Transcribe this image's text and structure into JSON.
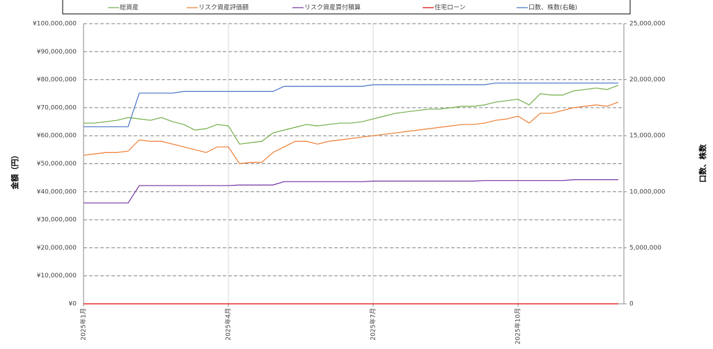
{
  "chart_data": {
    "type": "line",
    "legend_position": "top",
    "ylabel": "金額（円）",
    "y2label": "口数、株数",
    "categories": [
      "2025年1月",
      null,
      null,
      null,
      null,
      null,
      null,
      null,
      null,
      null,
      null,
      null,
      null,
      "2025年4月",
      null,
      null,
      null,
      null,
      null,
      null,
      null,
      null,
      null,
      null,
      null,
      null,
      "2025年7月",
      null,
      null,
      null,
      null,
      null,
      null,
      null,
      null,
      null,
      null,
      null,
      null,
      "2025年10月",
      null,
      null,
      null,
      null,
      null,
      null,
      null,
      null,
      null
    ],
    "ylim": [
      0,
      100000000
    ],
    "yticks": [
      {
        "value": 0,
        "label": "¥0"
      },
      {
        "value": 10000000,
        "label": "¥10,000,000"
      },
      {
        "value": 20000000,
        "label": "¥20,000,000"
      },
      {
        "value": 30000000,
        "label": "¥30,000,000"
      },
      {
        "value": 40000000,
        "label": "¥40,000,000"
      },
      {
        "value": 50000000,
        "label": "¥50,000,000"
      },
      {
        "value": 60000000,
        "label": "¥60,000,000"
      },
      {
        "value": 70000000,
        "label": "¥70,000,000"
      },
      {
        "value": 80000000,
        "label": "¥80,000,000"
      },
      {
        "value": 90000000,
        "label": "¥90,000,000"
      },
      {
        "value": 100000000,
        "label": "¥100,000,000"
      }
    ],
    "y2lim": [
      0,
      25000000
    ],
    "y2ticks": [
      0,
      {
        "value": 5000000,
        "label": "5,000,000"
      },
      {
        "value": 10000000,
        "label": "10,000,000"
      },
      {
        "value": 15000000,
        "label": "15,000,000"
      },
      {
        "value": 20000000,
        "label": "20,000,000"
      },
      {
        "value": 25000000,
        "label": "25,000,000"
      }
    ],
    "grid": true,
    "series": [
      {
        "name": "総資産",
        "color": "#70ad47",
        "values": [
          64500000,
          64500000,
          65000000,
          65500000,
          66500000,
          66000000,
          65500000,
          66500000,
          65000000,
          64000000,
          62000000,
          62500000,
          64000000,
          63500000,
          57000000,
          57500000,
          58000000,
          61000000,
          62000000,
          63000000,
          64000000,
          63500000,
          64000000,
          64500000,
          64500000,
          65000000,
          66000000,
          67000000,
          68000000,
          68500000,
          69000000,
          69500000,
          69500000,
          70000000,
          70500000,
          70500000,
          71000000,
          72000000,
          72500000,
          73000000,
          71000000,
          75000000,
          74500000,
          74500000,
          76000000,
          76500000,
          77000000,
          76500000,
          78000000
        ]
      },
      {
        "name": "リスク資産評価額",
        "color": "#ed7d31",
        "values": [
          53000000,
          53500000,
          54000000,
          54000000,
          54500000,
          58500000,
          58000000,
          58000000,
          57000000,
          56000000,
          55000000,
          54000000,
          56000000,
          56000000,
          50000000,
          50500000,
          50500000,
          54000000,
          56000000,
          58000000,
          58000000,
          57000000,
          58000000,
          58500000,
          59000000,
          59500000,
          60000000,
          60500000,
          61000000,
          61500000,
          62000000,
          62500000,
          63000000,
          63500000,
          64000000,
          64000000,
          64500000,
          65500000,
          66000000,
          67000000,
          64500000,
          68000000,
          68000000,
          69000000,
          70000000,
          70500000,
          71000000,
          70500000,
          72000000
        ]
      },
      {
        "name": "リスク資産買付積算",
        "color": "#7030a0",
        "values": [
          36000000,
          36000000,
          36000000,
          36000000,
          36000000,
          42200000,
          42200000,
          42200000,
          42200000,
          42200000,
          42200000,
          42200000,
          42200000,
          42200000,
          42400000,
          42400000,
          42400000,
          42400000,
          43600000,
          43600000,
          43600000,
          43600000,
          43600000,
          43600000,
          43600000,
          43600000,
          43800000,
          43800000,
          43800000,
          43800000,
          43800000,
          43800000,
          43800000,
          43800000,
          43800000,
          43800000,
          44000000,
          44000000,
          44000000,
          44000000,
          44000000,
          44000000,
          44000000,
          44000000,
          44300000,
          44300000,
          44300000,
          44300000,
          44300000
        ]
      },
      {
        "name": "住宅ローン",
        "color": "#e00000",
        "values": [
          0,
          0,
          0,
          0,
          0,
          0,
          0,
          0,
          0,
          0,
          0,
          0,
          0,
          0,
          0,
          0,
          0,
          0,
          0,
          0,
          0,
          0,
          0,
          0,
          0,
          0,
          0,
          0,
          0,
          0,
          0,
          0,
          0,
          0,
          0,
          0,
          0,
          0,
          0,
          0,
          0,
          0,
          0,
          0,
          0,
          0,
          0,
          0,
          0
        ]
      },
      {
        "name": "口数、株数(右軸)",
        "color": "#4472c4",
        "axis": "y2",
        "values": [
          15800000,
          15800000,
          15800000,
          15800000,
          15800000,
          18800000,
          18800000,
          18800000,
          18800000,
          18950000,
          18950000,
          18950000,
          18950000,
          18950000,
          18950000,
          18950000,
          18950000,
          18950000,
          19400000,
          19400000,
          19400000,
          19400000,
          19400000,
          19400000,
          19400000,
          19400000,
          19550000,
          19550000,
          19550000,
          19550000,
          19550000,
          19550000,
          19550000,
          19550000,
          19550000,
          19550000,
          19550000,
          19700000,
          19700000,
          19700000,
          19700000,
          19700000,
          19700000,
          19700000,
          19700000,
          19700000,
          19700000,
          19700000,
          19700000
        ]
      }
    ]
  }
}
